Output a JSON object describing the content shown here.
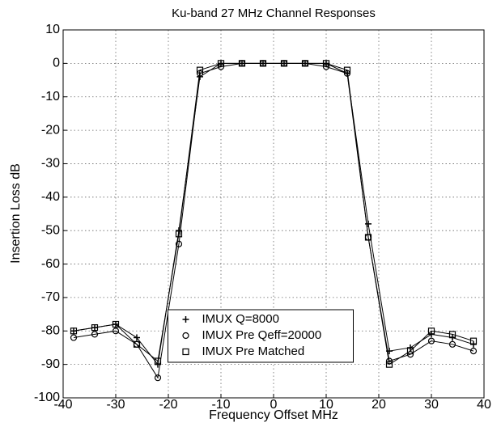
{
  "chart_data": {
    "type": "line",
    "title": "Ku-band 27 MHz Channel Responses",
    "xlabel": "Frequency Offset MHz",
    "ylabel": "Insertion Loss dB",
    "x": [
      -38,
      -34,
      -30,
      -26,
      -22,
      -18,
      -14,
      -10,
      -6,
      -2,
      2,
      6,
      10,
      14,
      18,
      22,
      26,
      30,
      34,
      38
    ],
    "series": [
      {
        "name": "IMUX Q=8000",
        "color": "#000000",
        "marker": "plus",
        "values": [
          -80,
          -79,
          -78,
          -82,
          -90,
          -50,
          -4,
          0,
          0,
          0,
          0,
          0,
          0,
          -3,
          -48,
          -86,
          -85,
          -81,
          -82,
          -84
        ]
      },
      {
        "name": "IMUX Pre Qeff=20000",
        "color": "#000000",
        "marker": "circle",
        "values": [
          -82,
          -81,
          -80,
          -84,
          -94,
          -54,
          -3,
          -1,
          0,
          0,
          0,
          0,
          -1,
          -3,
          -52,
          -89,
          -87,
          -83,
          -84,
          -86
        ]
      },
      {
        "name": "IMUX Pre Matched",
        "color": "#000000",
        "marker": "square",
        "values": [
          -80,
          -79,
          -78,
          -84,
          -89,
          -51,
          -2,
          0,
          0,
          0,
          0,
          0,
          0,
          -2,
          -52,
          -90,
          -86,
          -80,
          -81,
          -83
        ]
      }
    ],
    "xlim": [
      -40,
      40
    ],
    "xticks": [
      -40,
      -30,
      -20,
      -10,
      0,
      10,
      20,
      30,
      40
    ],
    "ylim": [
      -100,
      10
    ],
    "yticks": [
      -100,
      -90,
      -80,
      -70,
      -60,
      -50,
      -40,
      -30,
      -20,
      -10,
      0,
      10
    ],
    "grid": true,
    "legend": "lower center"
  }
}
